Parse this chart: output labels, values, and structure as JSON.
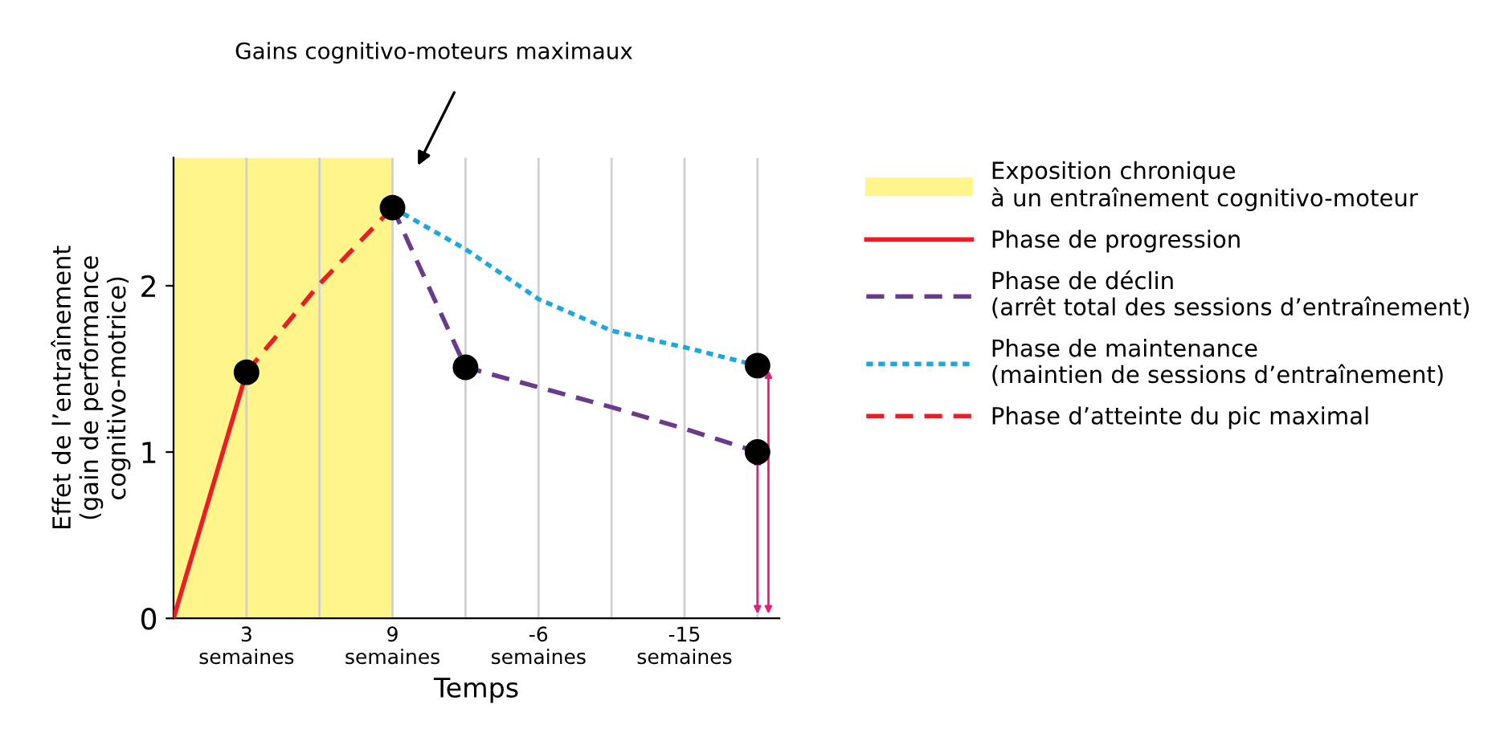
{
  "chart_data": {
    "type": "line",
    "xlabel": "Temps",
    "ylabel": "Effet de l’entraînement\n(gain de performance\ncognitivo-motrice)",
    "categories": [
      null,
      "3\nsemaines",
      null,
      "9\nsemaines",
      null,
      "-6\nsemaines",
      null,
      "-15\nsemaines",
      null
    ],
    "ylim": [
      0,
      2.77
    ],
    "yticks": [
      0,
      1,
      2
    ],
    "grid": "x",
    "legend": "right",
    "series": [
      {
        "name": "Phase de progression",
        "color": "#ee1c25",
        "line_style": "solid",
        "values": [
          0,
          1.48,
          null,
          null,
          null,
          null,
          null,
          null,
          null
        ]
      },
      {
        "name": "Phase de déclin\n(arrêt total des sessions d’entraînement)",
        "color": "#6a3a8e",
        "line_style": "dashed",
        "values": [
          null,
          null,
          null,
          2.47,
          1.51,
          1.39,
          1.27,
          1.14,
          1.0
        ]
      },
      {
        "name": "Phase de maintenance\n(maintien de sessions d’entraînement)",
        "color": "#1ba8e0",
        "line_style": "dotted",
        "values": [
          null,
          null,
          null,
          2.47,
          2.22,
          1.92,
          1.73,
          1.63,
          1.52
        ]
      },
      {
        "name": "Phase d’atteinte du pic maximal",
        "color": "#ee1c25",
        "line_style": "dashed",
        "values": [
          null,
          1.48,
          2.01,
          2.47,
          null,
          null,
          null,
          null,
          null
        ]
      },
      {
        "type": "scatter",
        "color": "#000000",
        "marker": "circle",
        "values": [
          null,
          1.48,
          null,
          2.47,
          1.51,
          null,
          null,
          null,
          1.52
        ]
      },
      {
        "type": "scatter",
        "color": "#000000",
        "marker": "circle",
        "values": [
          null,
          null,
          null,
          null,
          null,
          null,
          null,
          null,
          1.0
        ]
      }
    ],
    "annotations": [
      "Gains cognitivo-moteurs maximaux",
      "Exposition chronique\nà un entraînement cognitivo-moteur"
    ]
  }
}
